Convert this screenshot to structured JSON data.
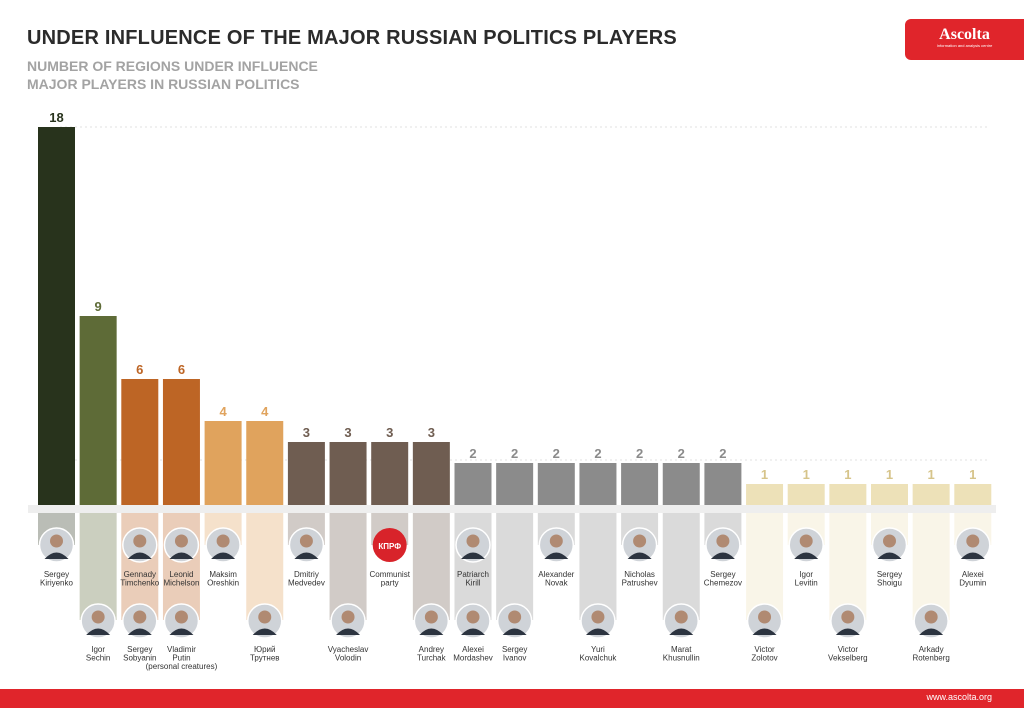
{
  "title": "UNDER INFLUENCE OF THE MAJOR RUSSIAN POLITICS PLAYERS",
  "subtitle1": "NUMBER OF REGIONS UNDER INFLUENCE",
  "subtitle2": "MAJOR PLAYERS IN RUSSIAN POLITICS",
  "brand": {
    "name": "Ascolta",
    "tagline": "Information and analysis centre"
  },
  "footer": {
    "url": "www.ascolta.org"
  },
  "colors": {
    "accent": "#e0252b"
  },
  "chart_data": {
    "type": "bar",
    "ylim": [
      0,
      18
    ],
    "grid": true,
    "categories": [
      "Sergey Kiriyenko",
      "Gennady Timchenko, Igor Sechin",
      "Sergey Sobyanin, Leonid Michelson",
      "Vladimir Putin (personal creatures)",
      "Maksim Oreshkin",
      "Юрий Трутнев",
      "Dmitriy Medvedev",
      "Vyacheslav Volodin",
      "Communist party",
      "Andrey Turchak, Alexei Mordashev",
      "Patriarch Kirill",
      "Sergey Ivanov",
      "Alexander Novak",
      "Yuri Kovalchuk",
      "Nicholas Patrushev",
      "Marat Khusnullin",
      "Sergey Chemezov",
      "Victor Zolotov",
      "Igor Levitin",
      "Victor Vekselberg",
      "Sergey Shoigu",
      "Arkady Rotenberg",
      "Alexei Dyumin"
    ],
    "values": [
      18,
      9,
      6,
      6,
      4,
      4,
      3,
      3,
      3,
      3,
      2,
      2,
      2,
      2,
      2,
      2,
      2,
      1,
      1,
      1,
      1,
      1,
      1
    ],
    "colors": [
      "#28331c",
      "#5e6b37",
      "#bd6525",
      "#bd6525",
      "#e0a35d",
      "#e0a35d",
      "#6f5d51",
      "#6f5d51",
      "#6f5d51",
      "#6f5d51",
      "#8b8b8b",
      "#8b8b8b",
      "#8b8b8b",
      "#8b8b8b",
      "#8b8b8b",
      "#8b8b8b",
      "#8b8b8b",
      "#ede1b8",
      "#ede1b8",
      "#ede1b8",
      "#ede1b8",
      "#ede1b8",
      "#ede1b8"
    ],
    "label_colors": [
      "#28331c",
      "#5e6b37",
      "#bd6525",
      "#bd6525",
      "#e0a35d",
      "#e0a35d",
      "#6f5d51",
      "#6f5d51",
      "#6f5d51",
      "#6f5d51",
      "#8b8b8b",
      "#8b8b8b",
      "#8b8b8b",
      "#8b8b8b",
      "#8b8b8b",
      "#8b8b8b",
      "#8b8b8b",
      "#d6c48a",
      "#d6c48a",
      "#d6c48a",
      "#d6c48a",
      "#d6c48a",
      "#d6c48a"
    ],
    "people_upper": [
      {
        "bar": 0,
        "lines": [
          "Sergey",
          "Kiriyenko"
        ],
        "logo": false
      },
      {
        "bar": 2,
        "lines": [
          "Gennady",
          "Timchenko"
        ],
        "logo": false
      },
      {
        "bar": 3,
        "lines": [
          "Leonid",
          "Michelson"
        ],
        "logo": false
      },
      {
        "bar": 4,
        "lines": [
          "Maksim",
          "Oreshkin"
        ],
        "logo": false
      },
      {
        "bar": 6,
        "lines": [
          "Dmitriy",
          "Medvedev"
        ],
        "logo": false
      },
      {
        "bar": 8,
        "lines": [
          "Communist",
          "party"
        ],
        "logo": true,
        "logo_text": "КПРФ"
      },
      {
        "bar": 10,
        "lines": [
          "Patriarch",
          "Kirill"
        ],
        "logo": false
      },
      {
        "bar": 12,
        "lines": [
          "Alexander",
          "Novak"
        ],
        "logo": false
      },
      {
        "bar": 14,
        "lines": [
          "Nicholas",
          "Patrushev"
        ],
        "logo": false
      },
      {
        "bar": 16,
        "lines": [
          "Sergey",
          "Chemezov"
        ],
        "logo": false
      },
      {
        "bar": 18,
        "lines": [
          "Igor",
          "Levitin"
        ],
        "logo": false
      },
      {
        "bar": 20,
        "lines": [
          "Sergey",
          "Shoigu"
        ],
        "logo": false
      },
      {
        "bar": 22,
        "lines": [
          "Alexei",
          "Dyumin"
        ],
        "logo": false
      }
    ],
    "people_lower": [
      {
        "bar": 1,
        "lines": [
          "Igor",
          "Sechin"
        ]
      },
      {
        "bar": 2,
        "lines": [
          "Sergey",
          "Sobyanin"
        ]
      },
      {
        "bar": 3,
        "lines": [
          "Vladimir",
          "Putin",
          "(personal creatures)"
        ]
      },
      {
        "bar": 5,
        "lines": [
          "Юрий",
          "Трутнев"
        ]
      },
      {
        "bar": 7,
        "lines": [
          "Vyacheslav",
          "Volodin"
        ]
      },
      {
        "bar": 9,
        "lines": [
          "Andrey",
          "Turchak"
        ]
      },
      {
        "bar": 10,
        "lines": [
          "Alexei",
          "Mordashev"
        ]
      },
      {
        "bar": 11,
        "lines": [
          "Sergey",
          "Ivanov"
        ]
      },
      {
        "bar": 13,
        "lines": [
          "Yuri",
          "Kovalchuk"
        ]
      },
      {
        "bar": 15,
        "lines": [
          "Marat",
          "Khusnullin"
        ]
      },
      {
        "bar": 17,
        "lines": [
          "Victor",
          "Zolotov"
        ]
      },
      {
        "bar": 19,
        "lines": [
          "Victor",
          "Vekselberg"
        ]
      },
      {
        "bar": 21,
        "lines": [
          "Arkady",
          "Rotenberg"
        ]
      }
    ]
  }
}
